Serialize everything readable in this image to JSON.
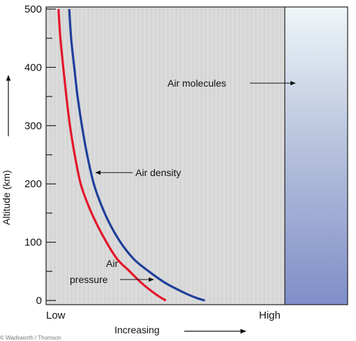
{
  "chart_data": {
    "type": "line",
    "title": "",
    "ylabel": "Altitude (km)",
    "xlabel": "Increasing",
    "ylim": [
      0,
      500
    ],
    "yticks": [
      0,
      100,
      200,
      300,
      400,
      500
    ],
    "xlim": [
      0,
      1
    ],
    "x_tick_labels": {
      "low": "Low",
      "high": "High"
    },
    "grid": false,
    "colors": {
      "pressure": "#e2162b",
      "density": "#1f3f9a",
      "panel": "#d8d8d8",
      "molecules_top": "#eef6f8",
      "molecules_bottom": "#7f8ec8"
    },
    "series": [
      {
        "id": "pressure",
        "x": [
          0.052,
          0.06,
          0.072,
          0.085,
          0.1,
          0.12,
          0.145,
          0.18,
          0.22,
          0.26,
          0.3,
          0.35,
          0.4,
          0.445,
          0.48,
          0.502
        ],
        "y": [
          500,
          450,
          400,
          350,
          300,
          250,
          200,
          160,
          125,
          95,
          70,
          50,
          30,
          15,
          5,
          0
        ]
      },
      {
        "id": "density",
        "x": [
          0.097,
          0.105,
          0.118,
          0.132,
          0.15,
          0.172,
          0.2,
          0.235,
          0.275,
          0.32,
          0.37,
          0.43,
          0.5,
          0.57,
          0.625,
          0.665
        ],
        "y": [
          500,
          450,
          400,
          350,
          300,
          250,
          200,
          160,
          125,
          95,
          70,
          50,
          30,
          15,
          5,
          0
        ]
      }
    ],
    "annotations": [
      {
        "id": "molecules",
        "text": "Air molecules"
      },
      {
        "id": "density",
        "text": "Air density"
      },
      {
        "id": "pressure",
        "lines": [
          "Air",
          "pressure"
        ]
      }
    ],
    "credit": "© Wadsworth / Thomson"
  }
}
